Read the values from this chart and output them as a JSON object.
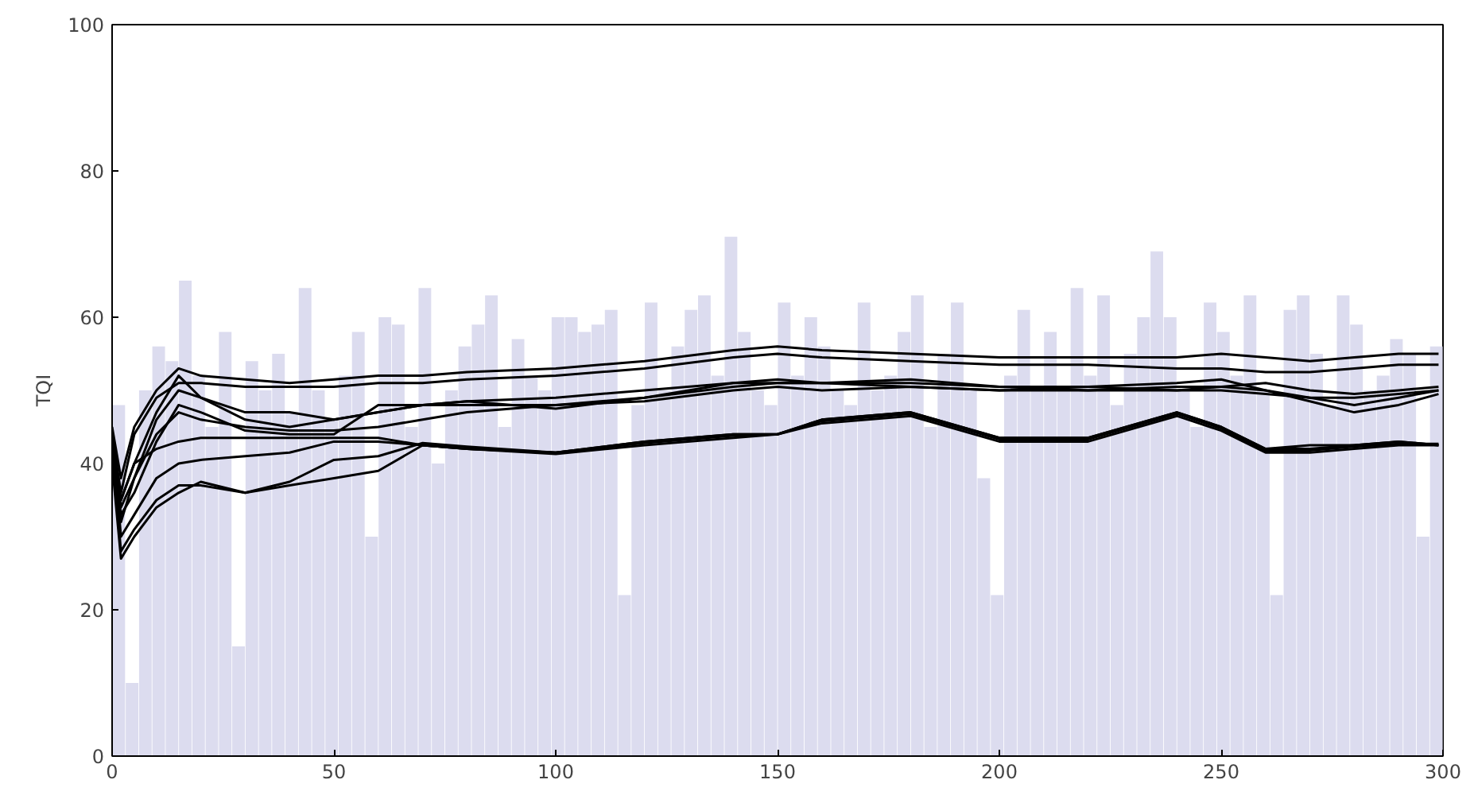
{
  "chart_data": {
    "type": "line",
    "ylabel": "TQI",
    "xlim": [
      0,
      300
    ],
    "ylim": [
      0,
      100
    ],
    "xticks": [
      0,
      50,
      100,
      150,
      200,
      250,
      300
    ],
    "yticks": [
      0,
      20,
      40,
      60,
      80,
      100
    ],
    "grid": false,
    "marker": "none",
    "line_style": "solid",
    "x": [
      0,
      2,
      5,
      10,
      15,
      20,
      30,
      40,
      50,
      60,
      70,
      80,
      100,
      120,
      140,
      150,
      160,
      180,
      200,
      220,
      240,
      250,
      260,
      270,
      280,
      290,
      299
    ],
    "series": [
      {
        "type": "bar",
        "color": "#dcdcef",
        "x": [
          0,
          3,
          6,
          9,
          12,
          15,
          18,
          21,
          24,
          27,
          30,
          33,
          36,
          39,
          42,
          45,
          48,
          51,
          54,
          57,
          60,
          63,
          66,
          69,
          72,
          75,
          78,
          81,
          84,
          87,
          90,
          93,
          96,
          99,
          102,
          105,
          108,
          111,
          114,
          117,
          120,
          123,
          126,
          129,
          132,
          135,
          138,
          141,
          144,
          147,
          150,
          153,
          156,
          159,
          162,
          165,
          168,
          171,
          174,
          177,
          180,
          183,
          186,
          189,
          192,
          195,
          198,
          201,
          204,
          207,
          210,
          213,
          216,
          219,
          222,
          225,
          228,
          231,
          234,
          237,
          240,
          243,
          246,
          249,
          252,
          255,
          258,
          261,
          264,
          267,
          270,
          273,
          276,
          279,
          282,
          285,
          288,
          291,
          294,
          297
        ],
        "values": [
          48,
          10,
          50,
          56,
          54,
          65,
          52,
          45,
          58,
          15,
          54,
          50,
          55,
          47,
          64,
          50,
          46,
          52,
          58,
          30,
          60,
          59,
          45,
          64,
          40,
          50,
          56,
          59,
          63,
          45,
          57,
          52,
          50,
          60,
          60,
          58,
          59,
          61,
          22,
          48,
          62,
          50,
          56,
          61,
          63,
          52,
          71,
          58,
          50,
          48,
          62,
          52,
          60,
          56,
          50,
          48,
          62,
          50,
          52,
          58,
          63,
          45,
          55,
          62,
          50,
          38,
          22,
          52,
          61,
          50,
          58,
          50,
          64,
          52,
          63,
          48,
          55,
          60,
          69,
          60,
          50,
          45,
          62,
          58,
          52,
          63,
          50,
          22,
          61,
          63,
          55,
          48,
          63,
          59,
          50,
          52,
          57,
          55,
          30,
          56
        ]
      },
      {
        "color": "#000000",
        "values": [
          45,
          38,
          45,
          50,
          53,
          52,
          51.5,
          51,
          51.5,
          52,
          52,
          52.5,
          53,
          54,
          55.5,
          56,
          55.5,
          55,
          54.5,
          54.5,
          54.5,
          55,
          54.5,
          54,
          54.5,
          55,
          55
        ]
      },
      {
        "color": "#000000",
        "values": [
          44,
          36,
          44,
          49,
          51,
          51,
          50.5,
          50.5,
          50.5,
          51,
          51,
          51.5,
          52,
          53,
          54.5,
          55,
          54.5,
          54,
          53.5,
          53.5,
          53,
          53,
          52.5,
          52.5,
          53,
          53.5,
          53.5
        ]
      },
      {
        "color": "#000000",
        "values": [
          44,
          35,
          40,
          47,
          52,
          49,
          47,
          47,
          46,
          47,
          48,
          48.5,
          47.5,
          49,
          51,
          51.5,
          51,
          50.5,
          50,
          50,
          50,
          50,
          49.5,
          49,
          48,
          49,
          50
        ]
      },
      {
        "color": "#000000",
        "values": [
          44,
          32,
          38,
          46,
          50,
          49,
          46,
          45,
          46,
          47,
          48,
          48,
          48,
          49,
          50.5,
          51,
          51,
          51,
          50.5,
          50,
          50.5,
          50.5,
          50,
          49,
          49,
          49.5,
          50
        ]
      },
      {
        "color": "#000000",
        "values": [
          44,
          33,
          36,
          43,
          48,
          47,
          44.5,
          44,
          44,
          48,
          48,
          48.5,
          49,
          50,
          51,
          51,
          51,
          51.5,
          50.5,
          50.5,
          50,
          50.5,
          51,
          50,
          49.5,
          50,
          50.5
        ]
      },
      {
        "color": "#000000",
        "values": [
          44,
          34,
          38,
          44,
          47,
          46,
          45,
          44.5,
          44.5,
          45,
          46,
          47,
          48,
          48.5,
          50,
          50.5,
          50,
          50.5,
          50,
          50.5,
          51,
          51.5,
          50,
          48.5,
          47,
          48,
          49.5
        ]
      },
      {
        "color": "#000000",
        "values": [
          44,
          35,
          40,
          42,
          43,
          43.5,
          43.5,
          43.5,
          43.5,
          43.5,
          42.5,
          42,
          41.5,
          43,
          44,
          44,
          46,
          47,
          43.5,
          43.5,
          47,
          45,
          42,
          42.5,
          42.5,
          43,
          42.5
        ]
      },
      {
        "color": "#000000",
        "values": [
          44,
          30,
          33,
          38,
          40,
          40.5,
          41,
          41.5,
          43,
          43,
          42.5,
          42,
          41.5,
          43,
          44,
          44,
          46,
          47,
          43.5,
          43.5,
          47,
          45,
          42,
          42,
          42.5,
          43,
          42.5
        ]
      },
      {
        "color": "#000000",
        "values": [
          40,
          27,
          30,
          34,
          36,
          37.5,
          36,
          37,
          38,
          39,
          42.5,
          42,
          41.3,
          42.5,
          43.5,
          44,
          45.5,
          46.5,
          43,
          43,
          46.5,
          44.5,
          41.5,
          41.5,
          42,
          42.5,
          42.5
        ]
      },
      {
        "color": "#000000",
        "values": [
          42,
          28,
          31,
          35,
          37,
          37,
          36,
          37.5,
          40.5,
          41,
          42.8,
          42.3,
          41.5,
          42.8,
          43.8,
          44,
          45.8,
          46.8,
          43.3,
          43.3,
          46.8,
          44.8,
          41.7,
          41.8,
          42.3,
          42.7,
          42.7
        ]
      }
    ]
  }
}
